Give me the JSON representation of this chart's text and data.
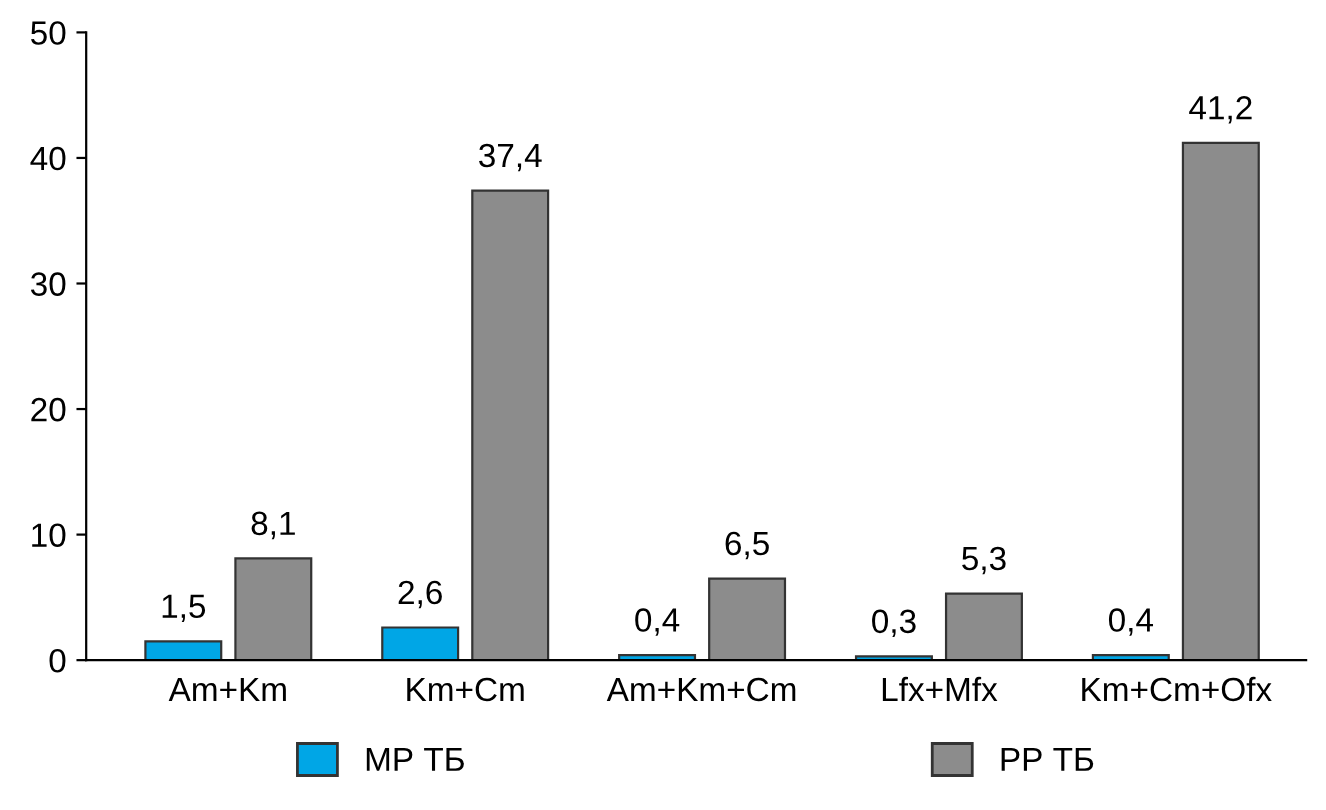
{
  "chart_data": {
    "type": "bar",
    "categories": [
      "Am+Km",
      "Km+Cm",
      "Am+Km+Cm",
      "Lfx+Mfx",
      "Km+Cm+Ofx"
    ],
    "series": [
      {
        "name": "МР ТБ",
        "color": "#00a6e6",
        "values": [
          1.5,
          2.6,
          0.4,
          0.3,
          0.4
        ],
        "value_labels": [
          "1,5",
          "2,6",
          "0,4",
          "0,3",
          "0,4"
        ]
      },
      {
        "name": "РР ТБ",
        "color": "#8c8c8c",
        "values": [
          8.1,
          37.4,
          6.5,
          5.3,
          41.2
        ],
        "value_labels": [
          "8,1",
          "37,4",
          "6,5",
          "5,3",
          "41,2"
        ]
      }
    ],
    "ylim": [
      0,
      50
    ],
    "yticks": [
      0,
      10,
      20,
      30,
      40,
      50
    ],
    "grid": false,
    "legend": "bottom"
  }
}
